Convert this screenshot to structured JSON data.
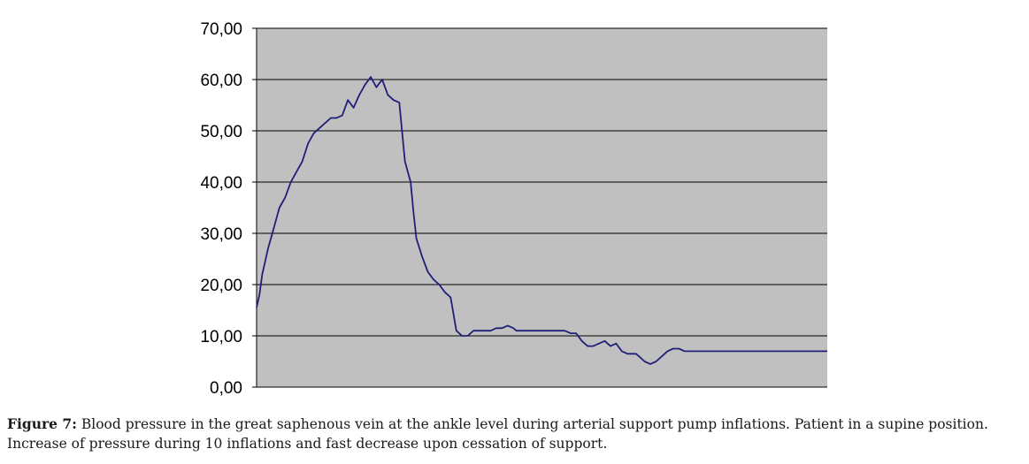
{
  "chart_data": {
    "type": "line",
    "title": "",
    "xlabel": "",
    "ylabel": "",
    "ylim": [
      0,
      70
    ],
    "y_ticks": [
      "0,00",
      "10,00",
      "20,00",
      "30,00",
      "40,00",
      "50,00",
      "60,00",
      "70,00"
    ],
    "grid": true,
    "legend": "none",
    "plot_background": "#c0c0c0",
    "line_color": "#1f1f7a",
    "series": [
      {
        "x": [
          0,
          0.5,
          1,
          2,
          3,
          4,
          5,
          6,
          7,
          8,
          9,
          10,
          11,
          12,
          13,
          14,
          15,
          16,
          17,
          18,
          19,
          20,
          21,
          22,
          23,
          24,
          25,
          26,
          27,
          27.5,
          28,
          29,
          30,
          31,
          32,
          33,
          34,
          35,
          36,
          37,
          38,
          39,
          40,
          41,
          42,
          43,
          44,
          45,
          45.5,
          46,
          47,
          48,
          49,
          50,
          51,
          52,
          53,
          54,
          55,
          56,
          57,
          58,
          59,
          60,
          61,
          62,
          63,
          64,
          65,
          66,
          66.5,
          67,
          68,
          69,
          70,
          71,
          72,
          73,
          74,
          75,
          76,
          77,
          78,
          79,
          80,
          81,
          82,
          82.5,
          83,
          84,
          84.5,
          85,
          86,
          87,
          88,
          89,
          90,
          91,
          92,
          93,
          94,
          95,
          96,
          97,
          98,
          99,
          100
        ],
        "values": [
          15.5,
          18,
          22,
          27,
          31,
          35,
          37,
          40,
          42,
          44,
          47.5,
          49.5,
          50.5,
          51.5,
          52.5,
          52.5,
          53,
          56,
          54.5,
          57,
          59,
          60.5,
          58.5,
          60,
          57,
          56,
          55.5,
          44,
          40,
          34,
          29,
          25.5,
          22.5,
          21,
          20,
          18.5,
          17.5,
          11,
          10,
          10,
          11,
          11,
          11,
          11,
          11.5,
          11.5,
          12,
          11.5,
          11,
          11,
          11,
          11,
          11,
          11,
          11,
          11,
          11,
          11,
          10.5,
          10.5,
          9,
          8,
          8,
          8.5,
          9,
          8,
          8.5,
          7,
          6.5,
          6.5,
          6.5,
          6,
          5,
          4.5,
          5,
          6,
          7,
          7.5,
          7.5,
          7,
          7,
          7,
          7,
          7,
          7,
          7,
          7,
          7,
          7,
          7,
          7,
          7,
          7,
          7,
          7,
          7,
          7,
          7,
          7,
          7,
          7,
          7,
          7,
          7,
          7,
          7,
          7
        ]
      }
    ]
  },
  "caption": {
    "label": "Figure 7:",
    "text": " Blood pressure in the great saphenous vein at the ankle level during arterial support pump inflations. Patient in a supine position. Increase of pressure during 10 inflations and fast decrease upon cessation of support."
  }
}
